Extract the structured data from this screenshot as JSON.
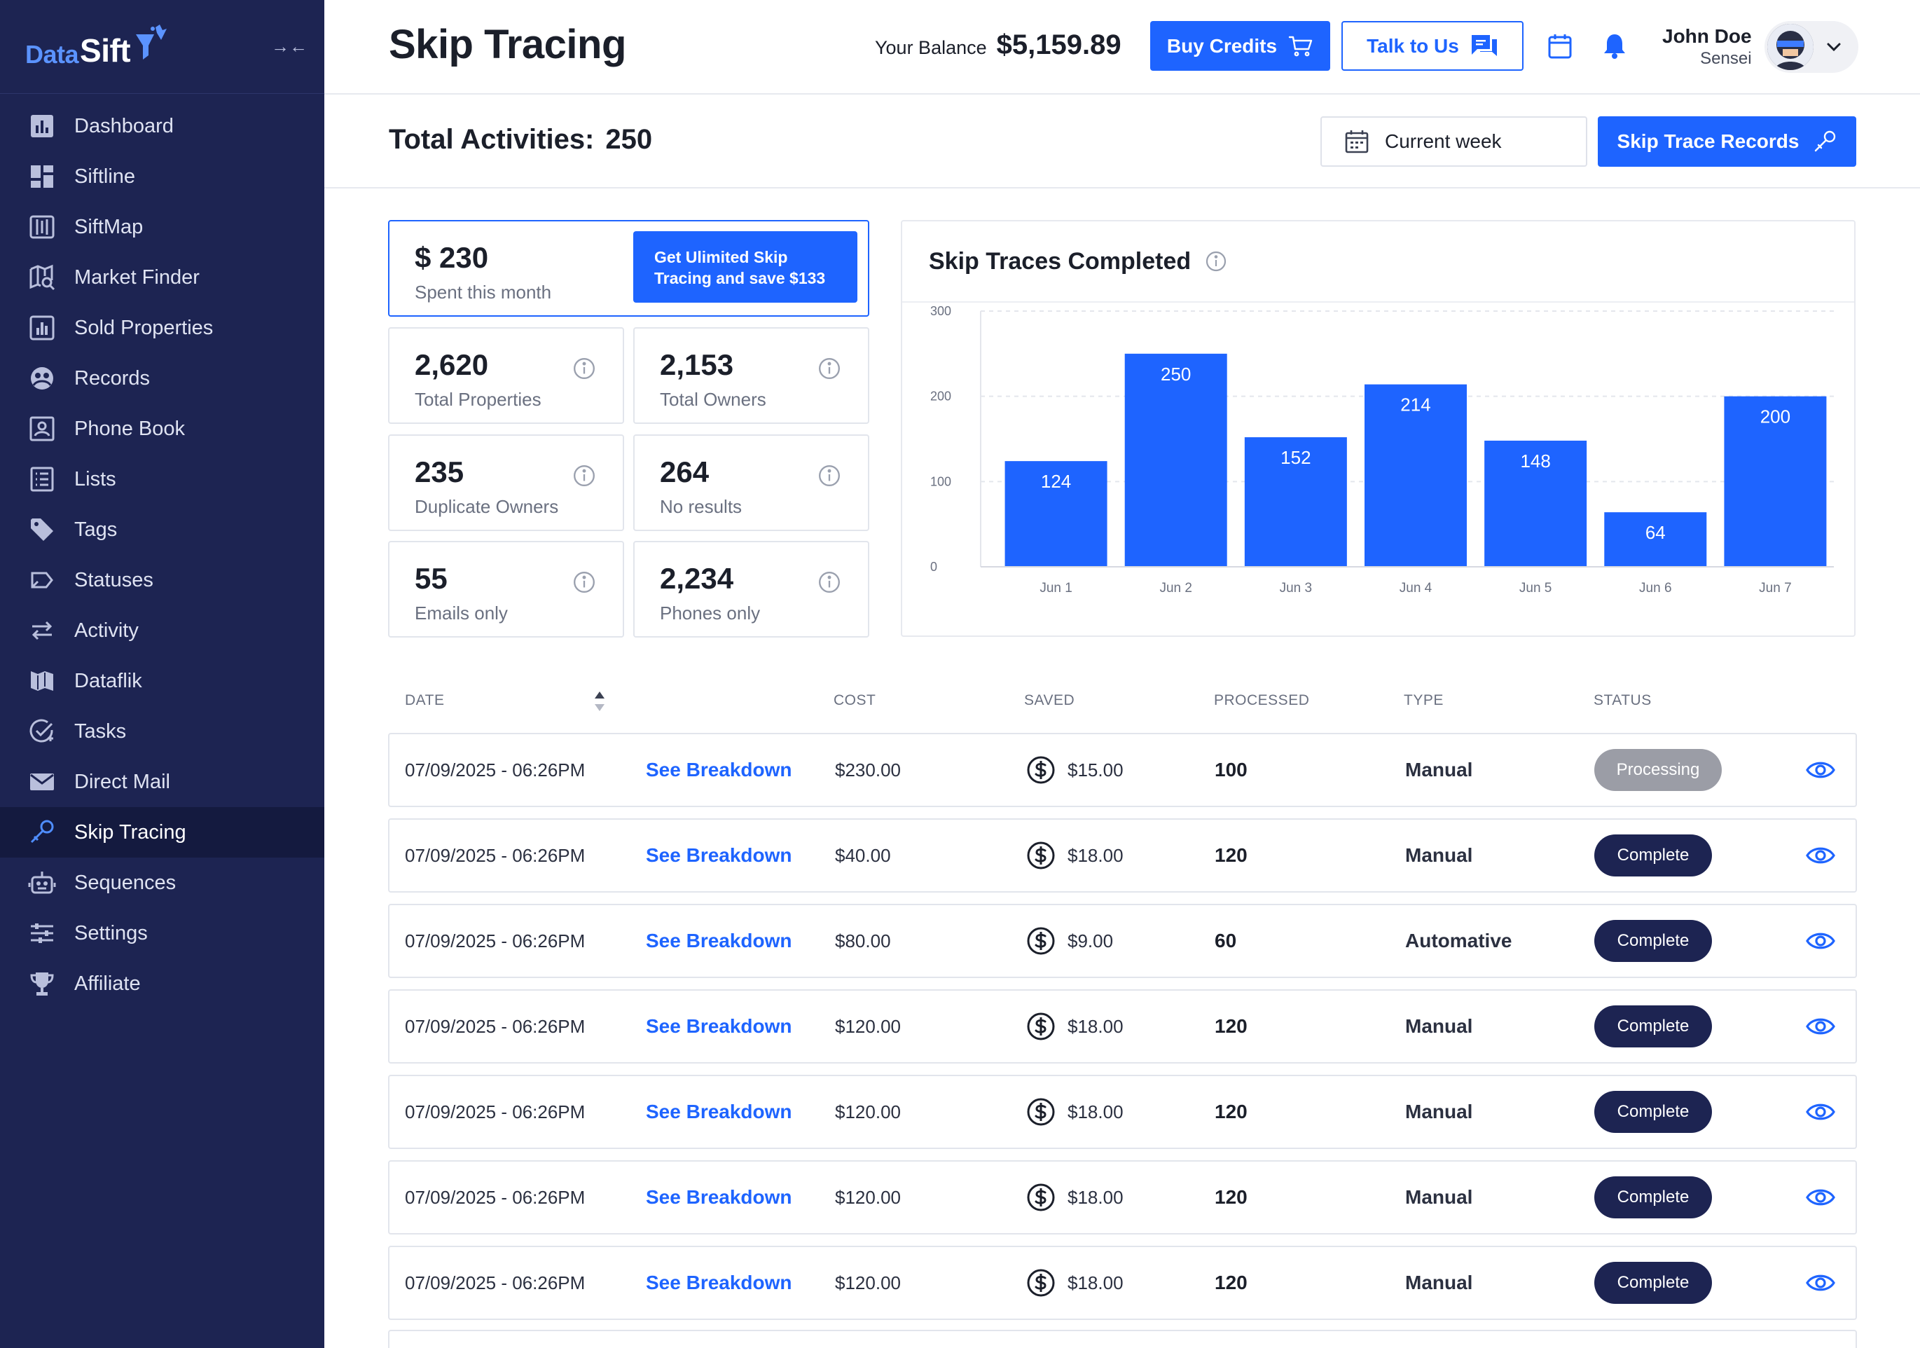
{
  "brand": {
    "part1": "Data",
    "part2": "Sift"
  },
  "sidebar": {
    "collapse_glyph": "→←",
    "items": [
      {
        "label": "Dashboard",
        "icon": "dashboard-icon"
      },
      {
        "label": "Siftline",
        "icon": "siftline-icon"
      },
      {
        "label": "SiftMap",
        "icon": "map-icon"
      },
      {
        "label": "Market Finder",
        "icon": "market-finder-icon"
      },
      {
        "label": "Sold Properties",
        "icon": "sold-properties-icon"
      },
      {
        "label": "Records",
        "icon": "records-icon"
      },
      {
        "label": "Phone Book",
        "icon": "phone-book-icon"
      },
      {
        "label": "Lists",
        "icon": "lists-icon"
      },
      {
        "label": "Tags",
        "icon": "tag-icon"
      },
      {
        "label": "Statuses",
        "icon": "statuses-icon"
      },
      {
        "label": "Activity",
        "icon": "activity-icon"
      },
      {
        "label": "Dataflik",
        "icon": "dataflik-icon"
      },
      {
        "label": "Tasks",
        "icon": "tasks-icon"
      },
      {
        "label": "Direct Mail",
        "icon": "mail-icon"
      },
      {
        "label": "Skip Tracing",
        "icon": "skip-tracing-icon",
        "active": true
      },
      {
        "label": "Sequences",
        "icon": "robot-icon"
      },
      {
        "label": "Settings",
        "icon": "settings-icon"
      },
      {
        "label": "Affiliate",
        "icon": "trophy-icon"
      }
    ]
  },
  "header": {
    "title": "Skip Tracing",
    "balance_label": "Your Balance",
    "balance_value": "$5,159.89",
    "buy_credits": "Buy Credits",
    "talk_to_us": "Talk to Us",
    "user_name": "John Doe",
    "user_role": "Sensei"
  },
  "subheader": {
    "total_label": "Total Activities:",
    "total_value": "250",
    "week_select": "Current week",
    "skip_trace_records": "Skip Trace Records"
  },
  "stats": {
    "spent": {
      "value": "$ 230",
      "label": "Spent this month",
      "promo": "Get Ulimited Skip Tracing and save $133",
      "promo_line1": "Get Ulimited Skip",
      "promo_line2": "Tracing and save $133"
    },
    "cards": [
      {
        "value": "2,620",
        "label": "Total Properties"
      },
      {
        "value": "2,153",
        "label": "Total Owners"
      },
      {
        "value": "235",
        "label": "Duplicate Owners"
      },
      {
        "value": "264",
        "label": "No results"
      },
      {
        "value": "55",
        "label": "Emails only"
      },
      {
        "value": "2,234",
        "label": "Phones only"
      }
    ]
  },
  "chart_data": {
    "type": "bar",
    "title": "Skip Traces Completed",
    "categories": [
      "Jun 1",
      "Jun 2",
      "Jun 3",
      "Jun 4",
      "Jun 5",
      "Jun 6",
      "Jun 7"
    ],
    "values": [
      124,
      250,
      152,
      214,
      148,
      64,
      200
    ],
    "yticks": [
      0,
      100,
      200,
      300
    ],
    "ylim": [
      0,
      300
    ],
    "grid": true,
    "bar_color": "#1e64ff"
  },
  "table": {
    "headers": {
      "date": "DATE",
      "cost": "COST",
      "saved": "SAVED",
      "processed": "PROCESSED",
      "type": "TYPE",
      "status": "STATUS"
    },
    "rows": [
      {
        "date": "07/09/2025 - 06:26PM",
        "link": "See Breakdown",
        "cost": "$230.00",
        "saved": "$15.00",
        "processed": "100",
        "type": "Manual",
        "status": "Processing"
      },
      {
        "date": "07/09/2025 - 06:26PM",
        "link": "See Breakdown",
        "cost": "$40.00",
        "saved": "$18.00",
        "processed": "120",
        "type": "Manual",
        "status": "Complete"
      },
      {
        "date": "07/09/2025 - 06:26PM",
        "link": "See Breakdown",
        "cost": "$80.00",
        "saved": "$9.00",
        "processed": "60",
        "type": "Automative",
        "status": "Complete"
      },
      {
        "date": "07/09/2025 - 06:26PM",
        "link": "See Breakdown",
        "cost": "$120.00",
        "saved": "$18.00",
        "processed": "120",
        "type": "Manual",
        "status": "Complete"
      },
      {
        "date": "07/09/2025 - 06:26PM",
        "link": "See Breakdown",
        "cost": "$120.00",
        "saved": "$18.00",
        "processed": "120",
        "type": "Manual",
        "status": "Complete"
      },
      {
        "date": "07/09/2025 - 06:26PM",
        "link": "See Breakdown",
        "cost": "$120.00",
        "saved": "$18.00",
        "processed": "120",
        "type": "Manual",
        "status": "Complete"
      },
      {
        "date": "07/09/2025 - 06:26PM",
        "link": "See Breakdown",
        "cost": "$120.00",
        "saved": "$18.00",
        "processed": "120",
        "type": "Manual",
        "status": "Complete"
      }
    ]
  },
  "colors": {
    "primary": "#1e64ff",
    "sidebar": "#1d2452",
    "processing": "#9b9da6",
    "complete": "#1d2452"
  }
}
